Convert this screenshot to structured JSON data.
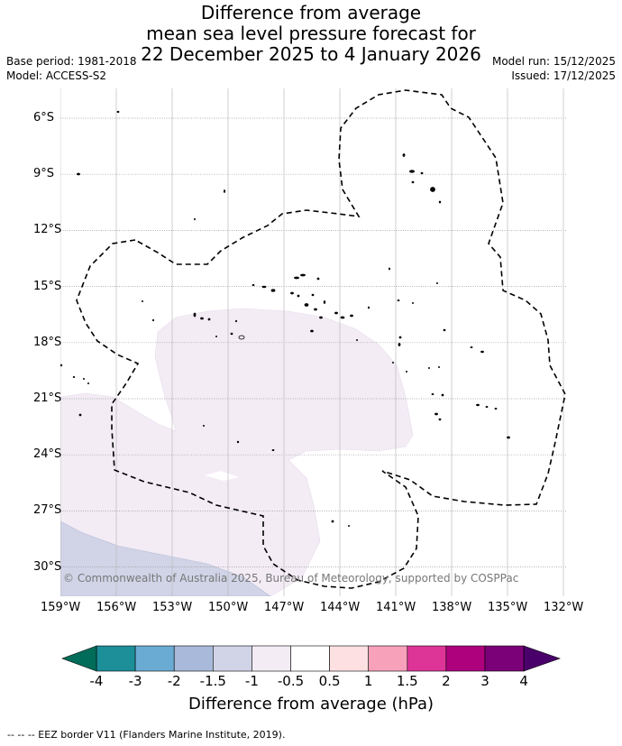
{
  "title": {
    "line1": "Difference from average",
    "line2": "mean sea level pressure forecast for",
    "line3": "22 December 2025 to 4 January 2026"
  },
  "meta": {
    "base_period": "Base period: 1981-2018",
    "model": "Model: ACCESS-S2",
    "model_run": "Model run: 15/12/2025",
    "issued": "Issued: 17/12/2025"
  },
  "map": {
    "lat_labels": [
      "6°S",
      "9°S",
      "12°S",
      "15°S",
      "18°S",
      "21°S",
      "24°S",
      "27°S",
      "30°S"
    ],
    "lon_labels": [
      "159°W",
      "156°W",
      "153°W",
      "150°W",
      "147°W",
      "144°W",
      "141°W",
      "138°W",
      "135°W",
      "132°W"
    ],
    "copyright": "© Commonwealth of Australia 2025, Bureau of Meteorology, supported by COSPPac"
  },
  "colorbar": {
    "ticks": [
      "-4",
      "-3",
      "-2",
      "-1.5",
      "-1",
      "-0.5",
      "0.5",
      "1",
      "1.5",
      "2",
      "3",
      "4"
    ],
    "colors": [
      "#1c8f99",
      "#6aabd3",
      "#a8b9d9",
      "#d1d4e7",
      "#f3ecf5",
      "#ffffff",
      "#fde0e2",
      "#f8a1bb",
      "#dd3497",
      "#ae017e",
      "#7a0177"
    ],
    "low_extend_color": "#016c59",
    "high_extend_color": "#49006a",
    "label": "Difference from average (hPa)"
  },
  "footer": "--  --  -- EEZ border V11 (Flanders Marine Institute, 2019)."
}
